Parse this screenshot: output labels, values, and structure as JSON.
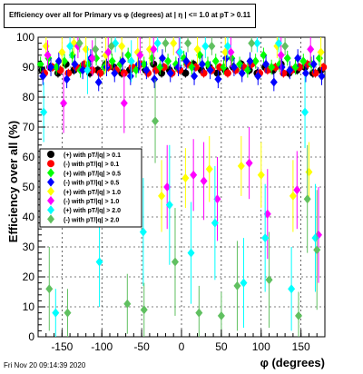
{
  "footer_text": "Fri Nov 20 09:14:39 2020",
  "chart_data": {
    "type": "scatter",
    "title": "Efficiency over all for Primary vs φ (degrees) at | η | <= 1.0 at pT > 0.11",
    "xlabel": "φ (degrees)",
    "ylabel": "Efficiency over all (%)",
    "xlim": [
      -180,
      180
    ],
    "ylim": [
      0,
      100
    ],
    "x_ticks": [
      -150,
      -100,
      -50,
      0,
      50,
      100,
      150
    ],
    "y_ticks": [
      0,
      10,
      20,
      30,
      40,
      50,
      60,
      70,
      80,
      90,
      100
    ],
    "grid": true,
    "legend_position": "left-middle",
    "series": [
      {
        "name": "(+) with pT/|q| > 0.1",
        "color": "#000000",
        "marker": "circle",
        "x": [
          -175,
          -165,
          -155,
          -145,
          -135,
          -125,
          -115,
          -105,
          -95,
          -85,
          -75,
          -65,
          -55,
          -45,
          -35,
          -25,
          -15,
          -5,
          5,
          15,
          25,
          35,
          45,
          55,
          65,
          75,
          85,
          95,
          105,
          115,
          125,
          135,
          145,
          155,
          165,
          175
        ],
        "y": [
          89,
          90,
          88,
          91,
          89,
          90,
          88,
          89,
          91,
          90,
          88,
          89,
          90,
          89,
          91,
          88,
          89,
          90,
          88,
          91,
          89,
          90,
          88,
          89,
          90,
          91,
          89,
          88,
          90,
          89,
          91,
          88,
          89,
          90,
          88,
          89
        ],
        "err": [
          1.5,
          1.5,
          1.5,
          1.5,
          1.5,
          1.5,
          1.5,
          1.5,
          1.5,
          1.5,
          1.5,
          1.5,
          1.5,
          1.5,
          1.5,
          1.5,
          1.5,
          1.5,
          1.5,
          1.5,
          1.5,
          1.5,
          1.5,
          1.5,
          1.5,
          1.5,
          1.5,
          1.5,
          1.5,
          1.5,
          1.5,
          1.5,
          1.5,
          1.5,
          1.5,
          1.5
        ]
      },
      {
        "name": "(-) with pT/|q| > 0.1",
        "color": "#ff0000",
        "marker": "circle",
        "x": [
          -172,
          -162,
          -152,
          -142,
          -132,
          -122,
          -112,
          -102,
          -92,
          -82,
          -72,
          -62,
          -52,
          -42,
          -32,
          -22,
          -12,
          -2,
          8,
          18,
          28,
          38,
          48,
          58,
          68,
          78,
          88,
          98,
          108,
          118,
          128,
          138,
          148,
          158,
          168,
          178
        ],
        "y": [
          88,
          90,
          89,
          88,
          90,
          91,
          89,
          88,
          90,
          89,
          88,
          90,
          91,
          88,
          89,
          90,
          88,
          89,
          91,
          90,
          88,
          89,
          90,
          88,
          89,
          90,
          91,
          88,
          89,
          90,
          88,
          89,
          90,
          91,
          88,
          90
        ],
        "err": [
          1.5,
          1.5,
          1.5,
          1.5,
          1.5,
          1.5,
          1.5,
          1.5,
          1.5,
          1.5,
          1.5,
          1.5,
          1.5,
          1.5,
          1.5,
          1.5,
          1.5,
          1.5,
          1.5,
          1.5,
          1.5,
          1.5,
          1.5,
          1.5,
          1.5,
          1.5,
          1.5,
          1.5,
          1.5,
          1.5,
          1.5,
          1.5,
          1.5,
          1.5,
          1.5,
          1.5
        ]
      },
      {
        "name": "(+) with pT/|q| > 0.5",
        "color": "#00ff00",
        "marker": "diamond",
        "x": [
          -177,
          -167,
          -157,
          -147,
          -137,
          -127,
          -117,
          -107,
          -97,
          -87,
          -77,
          -67,
          -57,
          -47,
          -37,
          -27,
          -17,
          -7,
          3,
          13,
          23,
          33,
          43,
          53,
          63,
          73,
          83,
          93,
          103,
          113,
          123,
          133,
          143,
          153,
          163,
          173
        ],
        "y": [
          91,
          93,
          90,
          92,
          94,
          89,
          91,
          93,
          90,
          92,
          91,
          94,
          89,
          91,
          93,
          90,
          92,
          91,
          93,
          90,
          94,
          91,
          92,
          90,
          93,
          91,
          89,
          92,
          94,
          90,
          91,
          93,
          90,
          92,
          91,
          93
        ],
        "err": [
          2.5,
          2.5,
          2.5,
          2.5,
          2.5,
          2.5,
          2.5,
          2.5,
          2.5,
          2.5,
          2.5,
          2.5,
          2.5,
          2.5,
          2.5,
          2.5,
          2.5,
          2.5,
          2.5,
          2.5,
          2.5,
          2.5,
          2.5,
          2.5,
          2.5,
          2.5,
          2.5,
          2.5,
          2.5,
          2.5,
          2.5,
          2.5,
          2.5,
          2.5,
          2.5,
          2.5
        ]
      },
      {
        "name": "(-) with pT/|q| > 0.5",
        "color": "#0000ff",
        "marker": "diamond",
        "x": [
          -174,
          -164,
          -154,
          -144,
          -134,
          -124,
          -114,
          -104,
          -94,
          -84,
          -74,
          -64,
          -54,
          -44,
          -34,
          -24,
          -14,
          -4,
          6,
          16,
          26,
          36,
          46,
          56,
          66,
          76,
          86,
          96,
          106,
          116,
          126,
          136,
          146,
          156,
          166,
          176
        ],
        "y": [
          87,
          90,
          92,
          86,
          91,
          89,
          93,
          85,
          90,
          88,
          92,
          87,
          91,
          89,
          86,
          93,
          88,
          90,
          92,
          87,
          91,
          89,
          86,
          93,
          90,
          88,
          92,
          87,
          91,
          85,
          90,
          89,
          93,
          88,
          91,
          87
        ],
        "err": [
          3,
          3,
          3,
          3,
          3,
          3,
          3,
          3,
          3,
          3,
          3,
          3,
          3,
          3,
          3,
          3,
          3,
          3,
          3,
          3,
          3,
          3,
          3,
          3,
          3,
          3,
          3,
          3,
          3,
          3,
          3,
          3,
          3,
          3,
          3,
          3
        ]
      },
      {
        "name": "(+) with pT/|q| > 1.0",
        "color": "#ffff00",
        "marker": "diamond",
        "x": [
          -170,
          -150,
          -135,
          -120,
          -95,
          -75,
          -55,
          -40,
          -25,
          -10,
          5,
          20,
          35,
          55,
          75,
          100,
          120,
          140,
          160,
          175
        ],
        "y": [
          97,
          95,
          98,
          96,
          94,
          97,
          95,
          96,
          47,
          98,
          53,
          96,
          56,
          95,
          57,
          54,
          97,
          47,
          55,
          95
        ],
        "err": [
          4,
          5,
          4,
          5,
          6,
          4,
          5,
          5,
          12,
          4,
          10,
          5,
          11,
          5,
          10,
          11,
          4,
          12,
          10,
          5
        ]
      },
      {
        "name": "(-) with pT/|q| > 1.0",
        "color": "#ff00ff",
        "marker": "diamond",
        "x": [
          -168,
          -148,
          -130,
          -112,
          -92,
          -72,
          -52,
          -35,
          -18,
          -3,
          15,
          28,
          45,
          62,
          85,
          108,
          125,
          145,
          162,
          172
        ],
        "y": [
          94,
          78,
          97,
          93,
          95,
          78,
          94,
          96,
          50,
          95,
          54,
          52,
          46,
          95,
          58,
          41,
          94,
          49,
          96,
          34
        ],
        "err": [
          5,
          10,
          4,
          6,
          5,
          10,
          6,
          5,
          14,
          6,
          12,
          13,
          14,
          5,
          12,
          15,
          6,
          13,
          5,
          16
        ]
      },
      {
        "name": "(+) with pT/|q| > 2.0",
        "color": "#00ffff",
        "marker": "diamond",
        "x": [
          -173,
          -158,
          -140,
          -118,
          -103,
          -83,
          -63,
          -48,
          -30,
          -15,
          -2,
          12,
          30,
          42,
          58,
          78,
          95,
          105,
          122,
          138,
          155,
          168
        ],
        "y": [
          75,
          8,
          97,
          89,
          25,
          98,
          92,
          35,
          98,
          44,
          95,
          28,
          97,
          38,
          97,
          18,
          98,
          33,
          98,
          16,
          75,
          33
        ],
        "err": [
          10,
          8,
          4,
          8,
          15,
          3,
          7,
          18,
          3,
          20,
          5,
          17,
          4,
          19,
          4,
          15,
          3,
          18,
          3,
          14,
          12,
          18
        ]
      },
      {
        "name": "(-) with pT/|q| > 2.0",
        "color": "#60c060",
        "marker": "diamond",
        "x": [
          -166,
          -143,
          -128,
          -108,
          -88,
          -68,
          -47,
          -33,
          -20,
          -8,
          8,
          22,
          38,
          50,
          70,
          88,
          110,
          130,
          147,
          158,
          170
        ],
        "y": [
          16,
          8,
          98,
          96,
          97,
          11,
          9,
          72,
          98,
          25,
          98,
          8,
          97,
          7,
          17,
          98,
          19,
          97,
          7,
          46,
          29
        ],
        "err": [
          14,
          8,
          3,
          4,
          3,
          10,
          9,
          14,
          3,
          18,
          3,
          9,
          3,
          8,
          15,
          3,
          16,
          3,
          8,
          18,
          20
        ]
      }
    ]
  }
}
